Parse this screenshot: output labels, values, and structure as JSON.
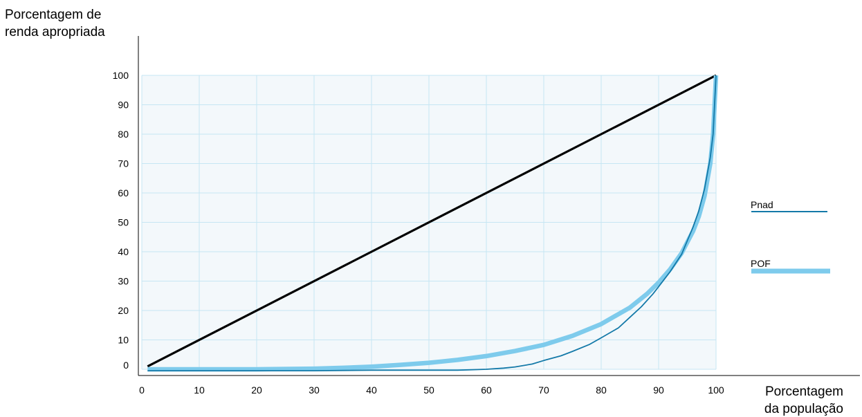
{
  "chart_data": {
    "type": "line",
    "title": "",
    "ylabel_lines": [
      "Porcentagem de",
      "renda apropriada"
    ],
    "xlabel_lines": [
      "Porcentagem",
      "da população"
    ],
    "xlim": [
      0,
      100
    ],
    "ylim": [
      0,
      100
    ],
    "x_ticks": [
      0,
      10,
      20,
      30,
      40,
      50,
      60,
      70,
      80,
      90,
      100
    ],
    "y_ticks": [
      0,
      10,
      20,
      30,
      40,
      50,
      60,
      70,
      80,
      90,
      100
    ],
    "grid": true,
    "legend_position": "right",
    "series": [
      {
        "key": "equality",
        "name": "",
        "color": "#000000",
        "x": [
          1,
          100
        ],
        "y": [
          1,
          100
        ]
      },
      {
        "key": "pof",
        "name": "POF",
        "color": "#7ecbec",
        "x": [
          1,
          10,
          20,
          30,
          35,
          40,
          45,
          50,
          55,
          60,
          65,
          70,
          75,
          80,
          85,
          88,
          90,
          92,
          94,
          96,
          97,
          98,
          99,
          99.5,
          100
        ],
        "y": [
          0,
          0,
          0,
          0.2,
          0.5,
          0.9,
          1.5,
          2.2,
          3.2,
          4.5,
          6.2,
          8.3,
          11.4,
          15.4,
          21,
          25.7,
          29.5,
          34,
          39.5,
          47,
          52,
          59,
          70,
          80,
          100
        ]
      },
      {
        "key": "pnad",
        "name": "Pnad",
        "color": "#1379a8",
        "x": [
          1,
          10,
          20,
          30,
          40,
          50,
          55,
          60,
          63,
          65,
          68,
          70,
          73,
          75,
          78,
          80,
          83,
          85,
          87,
          89,
          90,
          92,
          94,
          96,
          97,
          98,
          99,
          99.5,
          100
        ],
        "y": [
          -0.5,
          -0.5,
          -0.5,
          -0.5,
          -0.3,
          -0.3,
          -0.3,
          0,
          0.4,
          0.8,
          1.8,
          3,
          4.6,
          6.1,
          8.5,
          10.7,
          14.1,
          17.7,
          21.3,
          25.6,
          28.1,
          33.2,
          39.1,
          48.4,
          53.9,
          61.4,
          72.1,
          80.1,
          100
        ]
      }
    ]
  },
  "colors": {
    "plot_background": "#f3f8fb",
    "grid": "#c6e6f3",
    "axis": "#000000"
  }
}
